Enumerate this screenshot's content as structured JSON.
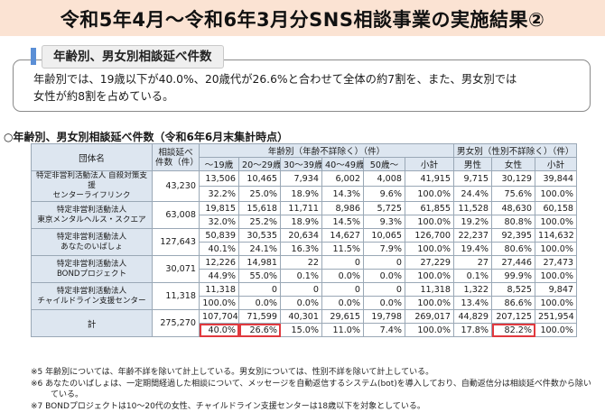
{
  "title": "令和5年4月～令和6年3月分SNS相談事業の実施結果②",
  "section_badge": "年齢別、男女別相談延べ件数",
  "summary": {
    "line1": "年齢別では、19歳以下が40.0%、20歳代が26.6%と合わせて全体の約7割を、また、男女別では",
    "line2": "女性が約8割を占めている。"
  },
  "table_title": "○年齢別、男女別相談延べ件数（令和6年6月末集計時点）",
  "headers": {
    "org": "団体名",
    "total": "相談延べ件数（件）",
    "age_group": "年齢別（年齢不詳除く）（件）",
    "gender_group": "男女別（性別不詳除く）（件）",
    "age_cols": [
      "～19歳",
      "20～29歳",
      "30～39歳",
      "40～49歳",
      "50歳～",
      "小計"
    ],
    "gender_cols": [
      "男性",
      "女性",
      "小計"
    ]
  },
  "rows": [
    {
      "name1": "特定非営利活動法人 自殺対策支援",
      "name2": "センターライフリンク",
      "total": "43,230",
      "counts": [
        "13,506",
        "10,465",
        "7,934",
        "6,002",
        "4,008",
        "41,915",
        "9,715",
        "30,129",
        "39,844"
      ],
      "pcts": [
        "32.2%",
        "25.0%",
        "18.9%",
        "14.3%",
        "9.6%",
        "100.0%",
        "24.4%",
        "75.6%",
        "100.0%"
      ]
    },
    {
      "name1": "特定非営利活動法人",
      "name2": "東京メンタルヘルス・スクエア",
      "total": "63,008",
      "counts": [
        "19,815",
        "15,618",
        "11,711",
        "8,986",
        "5,725",
        "61,855",
        "11,528",
        "48,630",
        "60,158"
      ],
      "pcts": [
        "32.0%",
        "25.2%",
        "18.9%",
        "14.5%",
        "9.3%",
        "100.0%",
        "19.2%",
        "80.8%",
        "100.0%"
      ]
    },
    {
      "name1": "特定非営利活動法人",
      "name2": "あなたのいばしょ",
      "total": "127,643",
      "counts": [
        "50,839",
        "30,535",
        "20,634",
        "14,627",
        "10,065",
        "126,700",
        "22,237",
        "92,395",
        "114,632"
      ],
      "pcts": [
        "40.1%",
        "24.1%",
        "16.3%",
        "11.5%",
        "7.9%",
        "100.0%",
        "19.4%",
        "80.6%",
        "100.0%"
      ]
    },
    {
      "name1": "特定非営利活動法人",
      "name2": "BONDプロジェクト",
      "total": "30,071",
      "counts": [
        "12,226",
        "14,981",
        "22",
        "0",
        "0",
        "27,229",
        "27",
        "27,446",
        "27,473"
      ],
      "pcts": [
        "44.9%",
        "55.0%",
        "0.1%",
        "0.0%",
        "0.0%",
        "100.0%",
        "0.1%",
        "99.9%",
        "100.0%"
      ]
    },
    {
      "name1": "特定非営利活動法人",
      "name2": "チャイルドライン支援センター",
      "total": "11,318",
      "counts": [
        "11,318",
        "0",
        "0",
        "0",
        "0",
        "11,318",
        "1,322",
        "8,525",
        "9,847"
      ],
      "pcts": [
        "100.0%",
        "0.0%",
        "0.0%",
        "0.0%",
        "0.0%",
        "100.0%",
        "13.4%",
        "86.6%",
        "100.0%"
      ]
    }
  ],
  "total_row": {
    "name": "計",
    "total": "275,270",
    "counts": [
      "107,704",
      "71,599",
      "40,301",
      "29,615",
      "19,798",
      "269,017",
      "44,829",
      "207,125",
      "251,954"
    ],
    "pcts": [
      "40.0%",
      "26.6%",
      "15.0%",
      "11.0%",
      "7.4%",
      "100.0%",
      "17.8%",
      "82.2%",
      "100.0%"
    ]
  },
  "notes": [
    "※5 年齢別については、年齢不詳を除いて計上している。男女別については、性別不詳を除いて計上している。",
    "※6 あなたのいばしょは、一定期間経過した相談について、メッセージを自動返信するシステム(bot)を導入しており、自動返信分は相談延べ件数から除い",
    "ている。",
    "※7 BONDプロジェクトは10～20代の女性、チャイルドライン支援センターは18歳以下を対象としている。"
  ],
  "colors": {
    "title_band": "#fbe3d3",
    "header_fill": "#dde6f0",
    "highlight": "#e0393e",
    "badge_accent": "#5b8fd6"
  }
}
